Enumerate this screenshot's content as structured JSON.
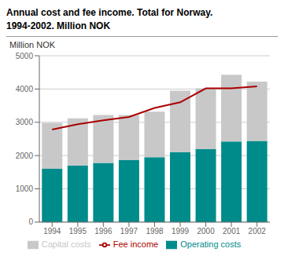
{
  "chart_data": {
    "type": "bar",
    "title": "Annual cost and fee income. Total for Norway.",
    "subtitle": "1994-2002. Million NOK",
    "ylabel": "Million NOK",
    "categories": [
      "1994",
      "1995",
      "1996",
      "1997",
      "1998",
      "1999",
      "2000",
      "2001",
      "2002"
    ],
    "stacked": true,
    "series": [
      {
        "name": "Operating costs",
        "color": "#008B8B",
        "values": [
          1600,
          1700,
          1780,
          1860,
          1950,
          2100,
          2200,
          2420,
          2440
        ]
      },
      {
        "name": "Capital costs",
        "color": "#C8C8C8",
        "values": [
          1380,
          1420,
          1440,
          1360,
          1370,
          1850,
          1820,
          2010,
          1780
        ]
      },
      {
        "name": "Fee income",
        "type": "line",
        "color": "#AA0000",
        "values": [
          2780,
          2940,
          3060,
          3160,
          3430,
          3600,
          4020,
          4020,
          4080
        ]
      }
    ],
    "ylim": [
      0,
      5000
    ],
    "yticks": [
      0,
      1000,
      2000,
      3000,
      4000,
      5000
    ],
    "grid": true,
    "legend": "bottom"
  }
}
